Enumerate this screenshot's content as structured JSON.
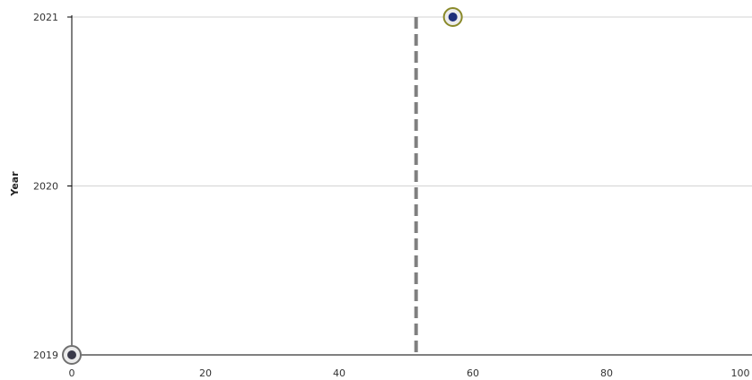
{
  "chart_data": {
    "type": "scatter",
    "title": "",
    "xlabel": "",
    "ylabel": "Year",
    "xlim": [
      0,
      100
    ],
    "ylim": [
      2019,
      2021
    ],
    "x_ticks": [
      "0",
      "20",
      "40",
      "60",
      "80",
      "100"
    ],
    "y_ticks": [
      "2019",
      "2020",
      "2021"
    ],
    "grid": "horizontal",
    "series": [
      {
        "points": [
          {
            "x": 0,
            "y": 2019
          },
          {
            "x": 57,
            "y": 2021
          }
        ]
      }
    ],
    "reference_line": {
      "orientation": "vertical",
      "x": 51.5,
      "style": "dashed",
      "color": "#808080"
    },
    "colors": {
      "grid": "#d3d3d3",
      "axis": "#000000",
      "point_fill": "#1e2f7a",
      "point_ring_start": "#707070",
      "point_ring_end": "#8a8a2a"
    }
  }
}
